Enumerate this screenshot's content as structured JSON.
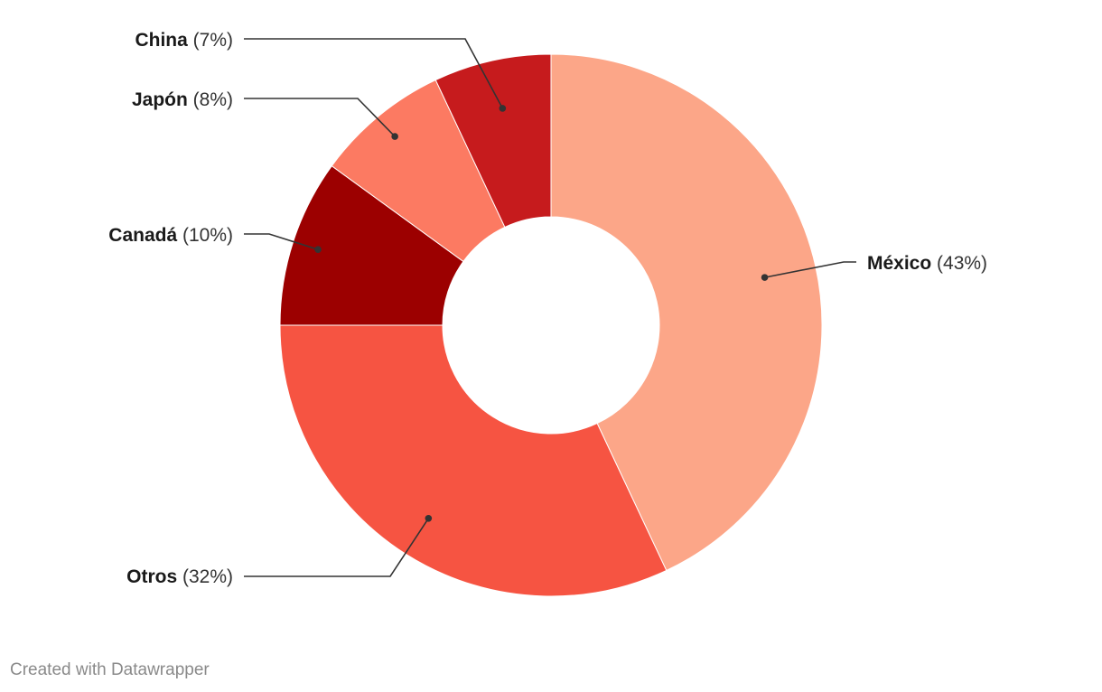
{
  "chart_data": {
    "type": "pie",
    "variant": "donut",
    "title": "",
    "legend": "none",
    "slices": [
      {
        "name": "México",
        "value": 43,
        "label_pct": "(43%)",
        "color": "#fca688"
      },
      {
        "name": "Otros",
        "value": 32,
        "label_pct": "(32%)",
        "color": "#f65442"
      },
      {
        "name": "Canadá",
        "value": 10,
        "label_pct": "(10%)",
        "color": "#9c0000"
      },
      {
        "name": "Japón",
        "value": 8,
        "label_pct": "(8%)",
        "color": "#fc7a62"
      },
      {
        "name": "China",
        "value": 7,
        "label_pct": "(7%)",
        "color": "#c61b1d"
      }
    ]
  },
  "footer": {
    "credit": "Created with Datawrapper"
  }
}
